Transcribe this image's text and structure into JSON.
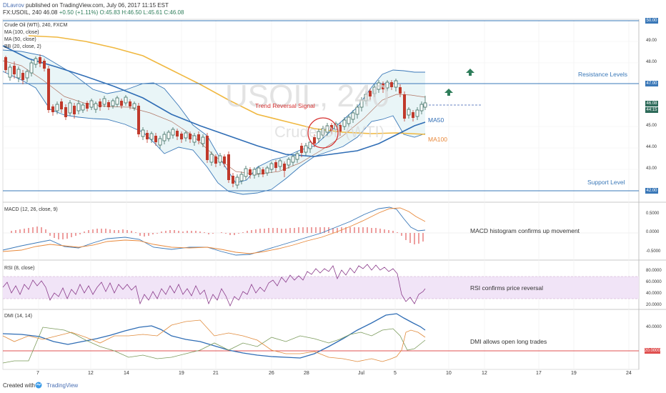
{
  "header": {
    "author": "DLavrov",
    "published": "published on TradingView.com, July 06, 2017 11:15 EST",
    "symbol": "FX:USOIL, 240",
    "price": "46.08",
    "change": "+0.50 (+1.11%)",
    "ohlc": "O:45.83 H:46.50 L:45.61 C:46.08"
  },
  "legend": {
    "title": "Crude Oil (WTI), 240, FXCM",
    "ma100": "MA (100, close)",
    "ma50": "MA (50, close)",
    "bb": "BB (20, close, 2)"
  },
  "watermark": {
    "symbol": "USOIL, 240",
    "name": "Crude Oil (WTI)"
  },
  "annotations": {
    "trend_reversal": "Trend Reversal Signal",
    "resistance": "Resistance Levels",
    "support": "Support Level",
    "ma50": "MA50",
    "ma100": "MA100",
    "macd_note": "MACD histogram confirms up movement",
    "rsi_note": "RSI confirms price reversal",
    "dmi_note": "DMI allows open long trades"
  },
  "panes": {
    "macd": "MACD (12, 26, close, 9)",
    "rsi": "RSI (8, close)",
    "dmi": "DMI (14, 14)"
  },
  "price_ticks": [
    "50.00",
    "49.00",
    "48.00",
    "47.00",
    "46.08",
    "45.00",
    "44.00",
    "43.00",
    "42.00"
  ],
  "price_tags": {
    "top": "50.00",
    "resistance": "47.00",
    "current": "46.08",
    "countdown": "44:15",
    "support": "42.00"
  },
  "macd_ticks": [
    "0.5000",
    "0.0000",
    "-0.5000"
  ],
  "rsi_ticks": [
    "80.0000",
    "60.0000",
    "40.0000",
    "20.0000"
  ],
  "dmi_ticks": [
    "40.0000",
    "20.0000"
  ],
  "x_ticks": [
    "7",
    "12",
    "14",
    "19",
    "21",
    "26",
    "28",
    "Jul",
    "5",
    "10",
    "12",
    "17",
    "19",
    "24"
  ],
  "footer": {
    "created_with": "Created with",
    "brand": "TradingView"
  },
  "colors": {
    "up": "#3b6b5f",
    "down": "#c0392b",
    "ma50": "#2f6db5",
    "ma100": "#f0b840",
    "bb": "#3a78b8",
    "bb_fill": "#e9f5f7",
    "macd_hist": "#e05050",
    "rsi_line": "#8a3b8a",
    "rsi_band": "#f1e4f7",
    "dmi_plus": "#7a9a5a",
    "dmi_minus": "#e08a3a",
    "adx": "#2f6db5",
    "level_line": "#3a78b8",
    "arrow": "#2e7d5a"
  }
}
